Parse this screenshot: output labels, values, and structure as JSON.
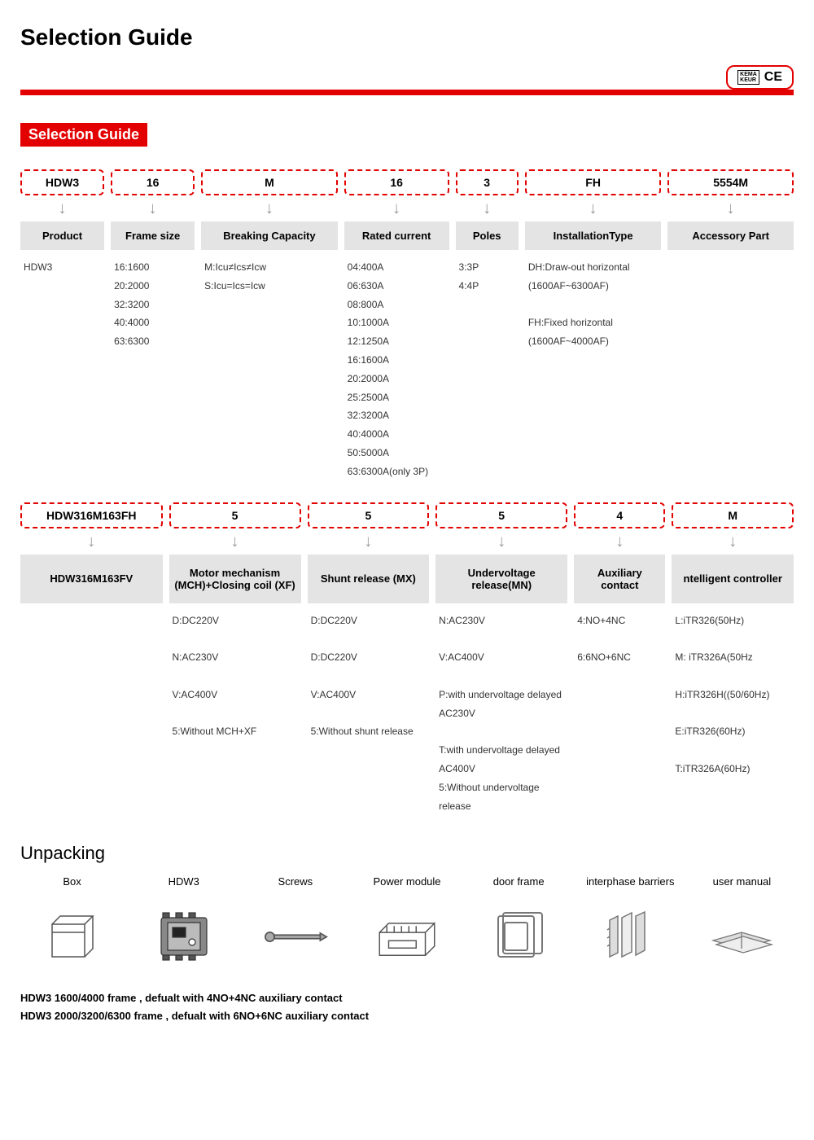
{
  "title": "Selection Guide",
  "cert": {
    "kema": "KEMA\nKEUR",
    "ce": "CE"
  },
  "colors": {
    "accent": "#e30000",
    "gray": "#e4e4e4",
    "text": "#000000",
    "muted": "#333333",
    "bg": "#ffffff"
  },
  "section_header": "Selection Guide",
  "row1": {
    "codes": [
      "HDW3",
      "16",
      "M",
      "16",
      "3",
      "FH",
      "5554M"
    ],
    "headers": [
      "Product",
      "Frame size",
      "Breaking Capacity",
      "Rated current",
      "Poles",
      "InstallationType",
      "Accessory  Part"
    ],
    "values": [
      [
        "HDW3"
      ],
      [
        "16:1600",
        "20:2000",
        "32:3200",
        "40:4000",
        "63:6300"
      ],
      [
        "M:Icu≠Ics≠Icw",
        "S:Icu=Ics=Icw"
      ],
      [
        "04:400A",
        "06:630A",
        "08:800A",
        "10:1000A",
        "12:1250A",
        "16:1600A",
        "20:2000A",
        "25:2500A",
        "32:3200A",
        "40:4000A",
        "50:5000A",
        "63:6300A(only 3P)"
      ],
      [
        "3:3P",
        "4:4P"
      ],
      [
        "DH:Draw-out horizontal (1600AF~6300AF)",
        "",
        "FH:Fixed horizontal (1600AF~4000AF)"
      ],
      []
    ]
  },
  "row2": {
    "codes": [
      "HDW316M163FH",
      "5",
      "5",
      "5",
      "4",
      "M"
    ],
    "headers": [
      "HDW316M163FV",
      "Motor mechanism (MCH)+Closing coil (XF)",
      "Shunt release (MX)",
      "Undervoltage release(MN)",
      "Auxiliary contact",
      "ntelligent controller"
    ],
    "values": [
      [],
      [
        "D:DC220V",
        "",
        "N:AC230V",
        "",
        "V:AC400V",
        "",
        "5:Without MCH+XF"
      ],
      [
        "D:DC220V",
        "",
        "D:DC220V",
        "",
        "V:AC400V",
        "",
        "5:Without shunt release"
      ],
      [
        "N:AC230V",
        "",
        "V:AC400V",
        "",
        "P:with undervoltage delayed AC230V",
        "",
        "T:with undervoltage delayed AC400V",
        "5:Without undervoltage release"
      ],
      [
        "4:NO+4NC",
        "",
        "6:6NO+6NC"
      ],
      [
        "L:iTR326(50Hz)",
        "",
        "M: iTR326A(50Hz",
        "",
        "H:iTR326H((50/60Hz)",
        "",
        "E:iTR326(60Hz)",
        "",
        "T:iTR326A(60Hz)"
      ]
    ]
  },
  "unpacking": {
    "title": "Unpacking",
    "items": [
      "Box",
      "HDW3",
      "Screws",
      "Power module",
      "door frame",
      "interphase barriers",
      "user manual"
    ]
  },
  "footnotes": [
    "HDW3 1600/4000 frame , defualt with 4NO+4NC auxiliary contact",
    "HDW3 2000/3200/6300 frame , defualt with 6NO+6NC auxiliary contact"
  ]
}
